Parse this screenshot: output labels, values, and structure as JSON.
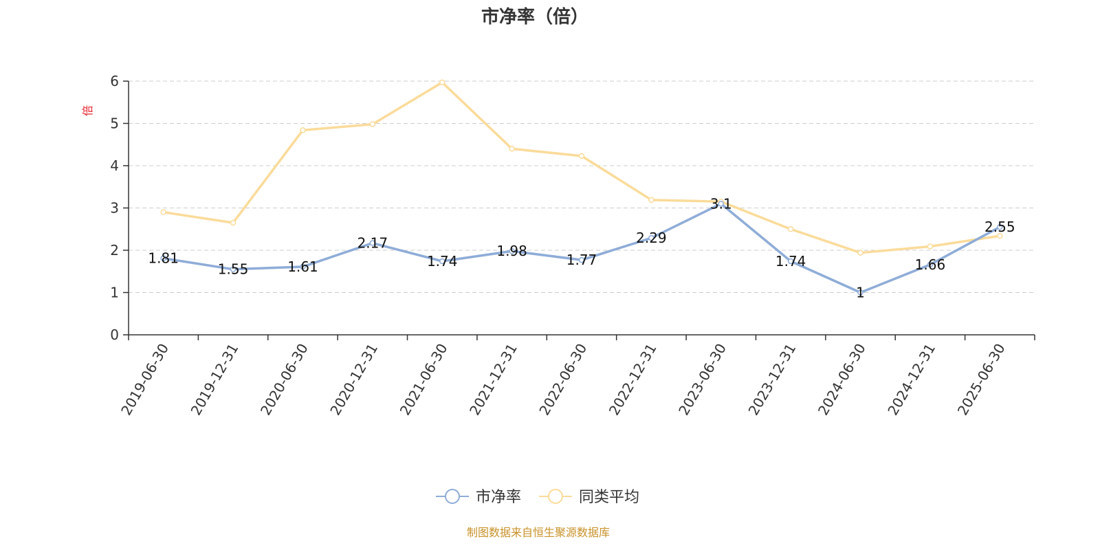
{
  "chart_data": {
    "type": "line",
    "title": "市净率（倍）",
    "ylabel": "倍",
    "xlabel": "",
    "ylim": [
      0,
      6
    ],
    "yticks": [
      0,
      1,
      2,
      3,
      4,
      5,
      6
    ],
    "grid": true,
    "legend_position": "bottom",
    "categories": [
      "2019-06-30",
      "2019-12-31",
      "2020-06-30",
      "2020-12-31",
      "2021-06-30",
      "2021-12-31",
      "2022-06-30",
      "2022-12-31",
      "2023-06-30",
      "2023-12-31",
      "2024-06-30",
      "2024-12-31",
      "2025-06-30"
    ],
    "series": [
      {
        "name": "市净率",
        "color": "#8eacd8",
        "values": [
          1.81,
          1.55,
          1.61,
          2.17,
          1.74,
          1.98,
          1.77,
          2.29,
          3.1,
          1.74,
          1,
          1.66,
          2.55
        ],
        "labels": [
          "1.81",
          "1.55",
          "1.61",
          "2.17",
          "1.74",
          "1.98",
          "1.77",
          "2.29",
          "3.1",
          "1.74",
          "1",
          "1.66",
          "2.55"
        ]
      },
      {
        "name": "同类平均",
        "color": "#fadb9a",
        "values": [
          2.9,
          2.65,
          4.84,
          4.98,
          5.97,
          4.4,
          4.23,
          3.19,
          3.15,
          2.5,
          1.94,
          2.09,
          2.34
        ]
      }
    ]
  },
  "source_text": "制图数据来自恒生聚源数据库"
}
